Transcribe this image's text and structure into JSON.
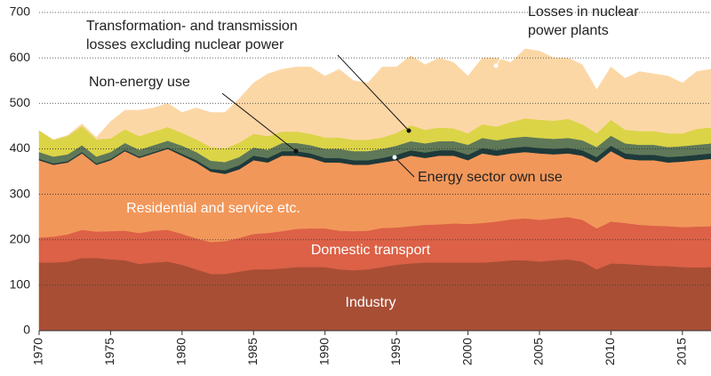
{
  "chart_data": {
    "type": "stacked-area",
    "x": [
      1970,
      1971,
      1972,
      1973,
      1974,
      1975,
      1976,
      1977,
      1978,
      1979,
      1980,
      1981,
      1982,
      1983,
      1984,
      1985,
      1986,
      1987,
      1988,
      1989,
      1990,
      1991,
      1992,
      1993,
      1994,
      1995,
      1996,
      1997,
      1998,
      1999,
      2000,
      2001,
      2002,
      2003,
      2004,
      2005,
      2006,
      2007,
      2008,
      2009,
      2010,
      2011,
      2012,
      2013,
      2014,
      2015,
      2016,
      2017
    ],
    "xlim": [
      1970,
      2017
    ],
    "xticks": [
      1970,
      1975,
      1980,
      1985,
      1990,
      1995,
      2000,
      2005,
      2010,
      2015
    ],
    "ylim": [
      0,
      700
    ],
    "yticks": [
      0,
      100,
      200,
      300,
      400,
      500,
      600,
      700
    ],
    "grid": true,
    "series": [
      {
        "name": "Industry",
        "color": "#a84e35",
        "values": [
          150,
          150,
          152,
          160,
          160,
          157,
          155,
          147,
          150,
          152,
          145,
          135,
          125,
          125,
          130,
          135,
          135,
          137,
          140,
          140,
          140,
          135,
          133,
          135,
          140,
          145,
          148,
          150,
          150,
          150,
          150,
          150,
          152,
          155,
          155,
          152,
          155,
          157,
          152,
          135,
          148,
          147,
          145,
          143,
          142,
          140,
          139,
          140
        ]
      },
      {
        "name": "Domestic transport",
        "color": "#dc6146",
        "values": [
          55,
          57,
          60,
          62,
          58,
          62,
          65,
          68,
          70,
          70,
          68,
          68,
          70,
          72,
          74,
          78,
          80,
          82,
          84,
          85,
          85,
          85,
          86,
          85,
          86,
          82,
          82,
          83,
          84,
          86,
          85,
          87,
          88,
          90,
          92,
          92,
          92,
          93,
          92,
          90,
          92,
          90,
          88,
          88,
          88,
          88,
          90,
          90
        ]
      },
      {
        "name": "Residential and service etc.",
        "color": "#f2975a",
        "values": [
          170,
          158,
          158,
          168,
          147,
          156,
          175,
          165,
          170,
          178,
          172,
          167,
          155,
          148,
          151,
          162,
          155,
          166,
          161,
          155,
          145,
          150,
          146,
          145,
          144,
          148,
          155,
          147,
          151,
          149,
          140,
          153,
          145,
          145,
          146,
          146,
          141,
          140,
          141,
          145,
          155,
          141,
          142,
          144,
          140,
          144,
          146,
          148
        ]
      },
      {
        "name": "Energy sector own use",
        "color": "#1e3a3a",
        "values": [
          3,
          3,
          3,
          3,
          3,
          3,
          3,
          3,
          3,
          3,
          4,
          5,
          6,
          8,
          9,
          10,
          10,
          10,
          10,
          10,
          10,
          10,
          10,
          10,
          10,
          12,
          12,
          12,
          12,
          12,
          12,
          12,
          12,
          12,
          12,
          12,
          12,
          12,
          12,
          12,
          12,
          12,
          12,
          12,
          12,
          12,
          12,
          12
        ]
      },
      {
        "name": "Non-energy use",
        "color": "#5f7858",
        "values": [
          15,
          15,
          15,
          15,
          15,
          15,
          15,
          15,
          15,
          15,
          18,
          18,
          18,
          18,
          18,
          18,
          18,
          18,
          18,
          18,
          20,
          20,
          20,
          20,
          20,
          20,
          20,
          20,
          20,
          20,
          22,
          22,
          22,
          22,
          22,
          22,
          22,
          22,
          22,
          22,
          22,
          22,
          22,
          22,
          22,
          22,
          22,
          22
        ]
      },
      {
        "name": "Transformation- and transmission losses excluding nuclear power",
        "color": "#dbd447",
        "values": [
          47,
          37,
          40,
          42,
          38,
          30,
          30,
          30,
          30,
          30,
          28,
          28,
          30,
          30,
          32,
          30,
          30,
          25,
          25,
          25,
          25,
          25,
          25,
          25,
          25,
          28,
          35,
          30,
          30,
          28,
          25,
          30,
          30,
          35,
          40,
          40,
          40,
          42,
          35,
          30,
          35,
          30,
          30,
          30,
          30,
          28,
          35,
          35
        ]
      },
      {
        "name": "Losses in nuclear power plants",
        "color": "#fcd7a6",
        "values": [
          0,
          0,
          2,
          5,
          4,
          37,
          42,
          57,
          52,
          52,
          45,
          69,
          76,
          79,
          96,
          112,
          137,
          137,
          142,
          147,
          135,
          150,
          130,
          125,
          155,
          145,
          153,
          143,
          153,
          145,
          126,
          146,
          151,
          131,
          153,
          151,
          138,
          134,
          131,
          96,
          116,
          113,
          131,
          126,
          126,
          111,
          126,
          128
        ]
      }
    ]
  }
}
